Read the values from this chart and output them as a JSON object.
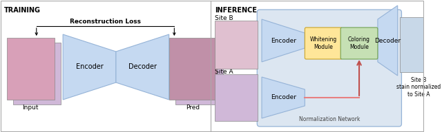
{
  "bg_color": "#ffffff",
  "outer_border": "#cccccc",
  "left_panel": {
    "title": "TRAINING",
    "recon_loss_text": "Reconstruction Loss",
    "encoder_label": "Encoder",
    "decoder_label": "Decoder",
    "input_label": "Input",
    "pred_label": "Pred"
  },
  "right_panel": {
    "title": "INFERENCE",
    "siteb_label": "Site B",
    "sitea_label": "Site A",
    "encoder_top_label": "Encoder",
    "encoder_bot_label": "Encoder",
    "whitening_label": "Whitening\nModule",
    "coloring_label": "Coloring\nModule",
    "decoder_label": "Decoder",
    "norm_label": "Normalization Network",
    "output_label": "Site B\nstain normalized\nto Site A"
  },
  "trap_color": "#c5d9f1",
  "trap_edge": "#95b3d7",
  "whitening_color": "#ffe699",
  "whitening_edge": "#c9a227",
  "coloring_color": "#c6e0b4",
  "coloring_edge": "#70a050",
  "norm_box_color": "#dce6f1",
  "norm_box_edge": "#95b3d7",
  "arrow_color": "#e88080",
  "arrow_head_color": "#c0504d",
  "divider_color": "#aaaaaa",
  "img_pink1": "#d8a0b8",
  "img_pink2": "#c090a8",
  "img_pink3": "#e0c0d0",
  "img_blue1": "#c8d8e8",
  "img_lavender": "#d0b8d8"
}
